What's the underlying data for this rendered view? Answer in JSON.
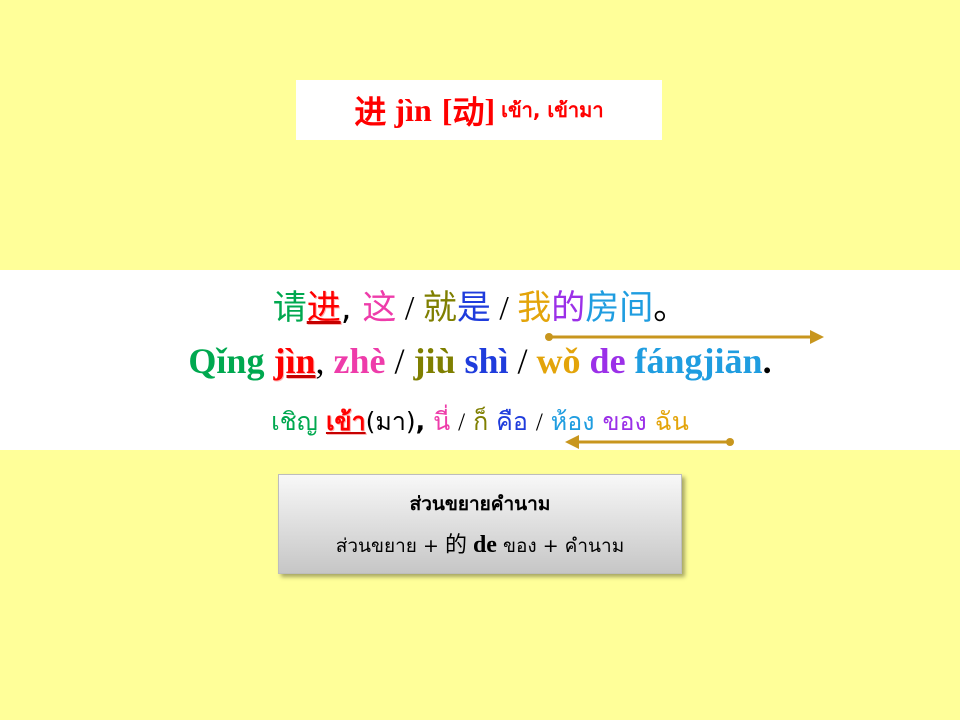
{
  "title": {
    "hanzi": "进",
    "pinyin": "jìn",
    "pos_open": "[",
    "pos": "动",
    "pos_close": "]",
    "thai": "เข้า, เข้ามา"
  },
  "sentence": {
    "hanzi": [
      {
        "text": "请",
        "color": "#00a84f"
      },
      {
        "text": "进",
        "color": "#ff0000"
      },
      {
        "text": ", ",
        "color": "#000000"
      },
      {
        "text": "这",
        "color": "#ee3caa"
      },
      {
        "text": " / ",
        "color": "#000000"
      },
      {
        "text": "就",
        "color": "#7f7f00"
      },
      {
        "text": "是",
        "color": "#1f3cdc"
      },
      {
        "text": " / ",
        "color": "#000000"
      },
      {
        "text": "我",
        "color": "#e3a40a"
      },
      {
        "text": "的",
        "color": "#9b30e8"
      },
      {
        "text": "房间",
        "color": "#1f9de0"
      },
      {
        "text": "。",
        "color": "#000000"
      }
    ],
    "pinyin": [
      {
        "text": "Qǐng",
        "color": "#00a84f"
      },
      {
        "text": "jìn",
        "color": "#ff0000"
      },
      {
        "text": ",",
        "color": "#000000"
      },
      {
        "text": "zhè",
        "color": "#ee3caa"
      },
      {
        "text": "/",
        "color": "#000000"
      },
      {
        "text": "jiù",
        "color": "#7f7f00"
      },
      {
        "text": "shì",
        "color": "#1f3cdc"
      },
      {
        "text": "/",
        "color": "#000000"
      },
      {
        "text": "wǒ",
        "color": "#e3a40a"
      },
      {
        "text": "de",
        "color": "#9b30e8"
      },
      {
        "text": "fángjiān",
        "color": "#1f9de0"
      },
      {
        "text": ".",
        "color": "#000000"
      }
    ],
    "thai": [
      {
        "text": "เชิญ",
        "color": "#00a84f"
      },
      {
        "text": "เข้า",
        "color": "#ff0000"
      },
      {
        "text": "(มา)",
        "color": "#000000"
      },
      {
        "text": ",",
        "color": "#000000"
      },
      {
        "text": "นี่",
        "color": "#ee3caa"
      },
      {
        "text": "/",
        "color": "#000000"
      },
      {
        "text": "ก็",
        "color": "#7f7f00"
      },
      {
        "text": "คือ",
        "color": "#1f3cdc"
      },
      {
        "text": "/",
        "color": "#000000"
      },
      {
        "text": "ห้อง",
        "color": "#1f9de0"
      },
      {
        "text": "ของ",
        "color": "#9b30e8"
      },
      {
        "text": "ฉัน",
        "color": "#e3a40a"
      }
    ],
    "arrow_color": "#c8961e"
  },
  "note": {
    "title": "ส่วนขยายคำนาม",
    "part1": "ส่วนขยาย + ",
    "hanzi": "的",
    "pinyin": " de",
    "part2": " ของ + คำนาม"
  }
}
